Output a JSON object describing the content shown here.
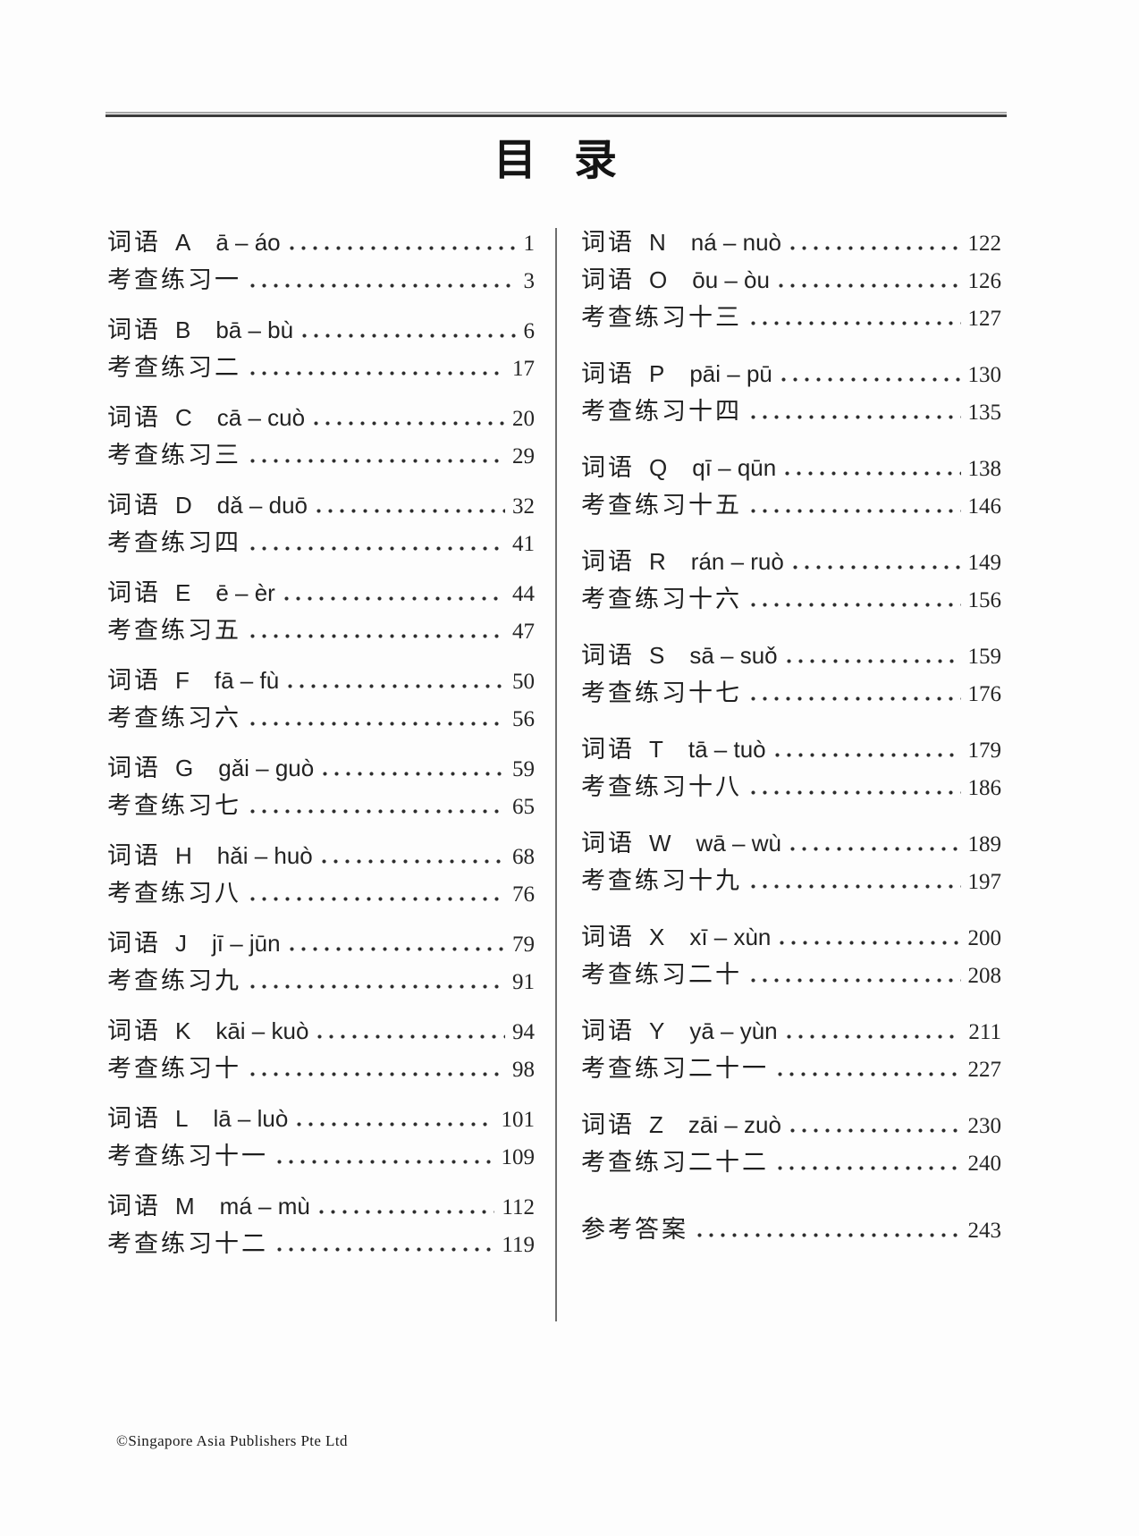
{
  "page": {
    "title": "目 录",
    "footer": "©Singapore Asia Publishers Pte Ltd"
  },
  "colors": {
    "ink": "#1e1e1e",
    "divider": "#6e6e6e",
    "top_rule": "#3c3c3c"
  },
  "toc": {
    "columns": [
      {
        "name": "left",
        "groups": [
          {
            "rows": [
              {
                "cn": "词语",
                "letter": "A",
                "pinyin": "ā – áo",
                "page": "1"
              },
              {
                "cn": "考查练习一",
                "letter": "",
                "pinyin": "",
                "page": "3"
              }
            ]
          },
          {
            "rows": [
              {
                "cn": "词语",
                "letter": "B",
                "pinyin": "bā – bù",
                "page": "6"
              },
              {
                "cn": "考查练习二",
                "letter": "",
                "pinyin": "",
                "page": "17"
              }
            ]
          },
          {
            "rows": [
              {
                "cn": "词语",
                "letter": "C",
                "pinyin": "cā – cuò",
                "page": "20"
              },
              {
                "cn": "考查练习三",
                "letter": "",
                "pinyin": "",
                "page": "29"
              }
            ]
          },
          {
            "rows": [
              {
                "cn": "词语",
                "letter": "D",
                "pinyin": "dǎ – duō",
                "page": "32"
              },
              {
                "cn": "考查练习四",
                "letter": "",
                "pinyin": "",
                "page": "41"
              }
            ]
          },
          {
            "rows": [
              {
                "cn": "词语",
                "letter": "E",
                "pinyin": "ē – èr",
                "page": "44"
              },
              {
                "cn": "考查练习五",
                "letter": "",
                "pinyin": "",
                "page": "47"
              }
            ]
          },
          {
            "rows": [
              {
                "cn": "词语",
                "letter": "F",
                "pinyin": "fā – fù",
                "page": "50"
              },
              {
                "cn": "考查练习六",
                "letter": "",
                "pinyin": "",
                "page": "56"
              }
            ]
          },
          {
            "rows": [
              {
                "cn": "词语",
                "letter": "G",
                "pinyin": "gǎi – guò",
                "page": "59"
              },
              {
                "cn": "考查练习七",
                "letter": "",
                "pinyin": "",
                "page": "65"
              }
            ]
          },
          {
            "rows": [
              {
                "cn": "词语",
                "letter": "H",
                "pinyin": "hǎi – huò",
                "page": "68"
              },
              {
                "cn": "考查练习八",
                "letter": "",
                "pinyin": "",
                "page": "76"
              }
            ]
          },
          {
            "rows": [
              {
                "cn": "词语",
                "letter": "J",
                "pinyin": "jī – jūn",
                "page": "79"
              },
              {
                "cn": "考查练习九",
                "letter": "",
                "pinyin": "",
                "page": "91"
              }
            ]
          },
          {
            "rows": [
              {
                "cn": "词语",
                "letter": "K",
                "pinyin": "kāi – kuò",
                "page": "94"
              },
              {
                "cn": "考查练习十",
                "letter": "",
                "pinyin": "",
                "page": "98"
              }
            ]
          },
          {
            "rows": [
              {
                "cn": "词语",
                "letter": "L",
                "pinyin": "lā – luò",
                "page": "101"
              },
              {
                "cn": "考查练习十一",
                "letter": "",
                "pinyin": "",
                "page": "109"
              }
            ]
          },
          {
            "rows": [
              {
                "cn": "词语",
                "letter": "M",
                "pinyin": "má – mù",
                "page": "112"
              },
              {
                "cn": "考查练习十二",
                "letter": "",
                "pinyin": "",
                "page": "119"
              }
            ]
          }
        ]
      },
      {
        "name": "right",
        "groups": [
          {
            "rows": [
              {
                "cn": "词语",
                "letter": "N",
                "pinyin": "ná – nuò",
                "page": "122"
              },
              {
                "cn": "词语",
                "letter": "O",
                "pinyin": "ōu – òu",
                "page": "126"
              },
              {
                "cn": "考查练习十三",
                "letter": "",
                "pinyin": "",
                "page": "127"
              }
            ]
          },
          {
            "rows": [
              {
                "cn": "词语",
                "letter": "P",
                "pinyin": "pāi – pū",
                "page": "130"
              },
              {
                "cn": "考查练习十四",
                "letter": "",
                "pinyin": "",
                "page": "135"
              }
            ]
          },
          {
            "rows": [
              {
                "cn": "词语",
                "letter": "Q",
                "pinyin": "qī – qūn",
                "page": "138"
              },
              {
                "cn": "考查练习十五",
                "letter": "",
                "pinyin": "",
                "page": "146"
              }
            ]
          },
          {
            "rows": [
              {
                "cn": "词语",
                "letter": "R",
                "pinyin": "rán – ruò",
                "page": "149"
              },
              {
                "cn": "考查练习十六",
                "letter": "",
                "pinyin": "",
                "page": "156"
              }
            ]
          },
          {
            "rows": [
              {
                "cn": "词语",
                "letter": "S",
                "pinyin": "sā – suǒ",
                "page": "159"
              },
              {
                "cn": "考查练习十七",
                "letter": "",
                "pinyin": "",
                "page": "176"
              }
            ]
          },
          {
            "rows": [
              {
                "cn": "词语",
                "letter": "T",
                "pinyin": "tā – tuò",
                "page": "179"
              },
              {
                "cn": "考查练习十八",
                "letter": "",
                "pinyin": "",
                "page": "186"
              }
            ]
          },
          {
            "rows": [
              {
                "cn": "词语",
                "letter": "W",
                "pinyin": "wā – wù",
                "page": "189"
              },
              {
                "cn": "考查练习十九",
                "letter": "",
                "pinyin": "",
                "page": "197"
              }
            ]
          },
          {
            "rows": [
              {
                "cn": "词语",
                "letter": "X",
                "pinyin": "xī – xùn",
                "page": "200"
              },
              {
                "cn": "考查练习二十",
                "letter": "",
                "pinyin": "",
                "page": "208"
              }
            ]
          },
          {
            "rows": [
              {
                "cn": "词语",
                "letter": "Y",
                "pinyin": "yā – yùn",
                "page": "211"
              },
              {
                "cn": "考查练习二十一",
                "letter": "",
                "pinyin": "",
                "page": "227"
              }
            ]
          },
          {
            "rows": [
              {
                "cn": "词语",
                "letter": "Z",
                "pinyin": "zāi – zuò",
                "page": "230"
              },
              {
                "cn": "考查练习二十二",
                "letter": "",
                "pinyin": "",
                "page": "240"
              }
            ]
          },
          {
            "extra_gap": true,
            "rows": [
              {
                "cn": "参考答案",
                "letter": "",
                "pinyin": "",
                "page": "243"
              }
            ]
          }
        ]
      }
    ]
  }
}
